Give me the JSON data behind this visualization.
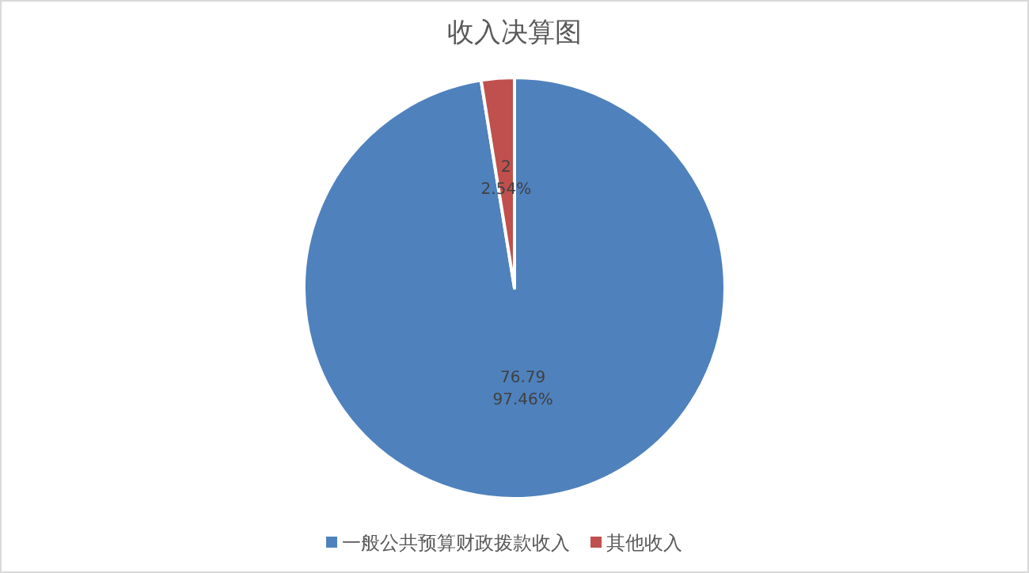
{
  "chart_data": {
    "type": "pie",
    "title": "收入决算图",
    "categories": [
      "一般公共预算财政拨款收入",
      "其他收入"
    ],
    "values": [
      76.79,
      2
    ],
    "colors": [
      "#4f81bd",
      "#c0504d"
    ],
    "value_labels": [
      "76.79\n97.46%",
      "2\n2.54%"
    ],
    "legend": "bottom"
  }
}
